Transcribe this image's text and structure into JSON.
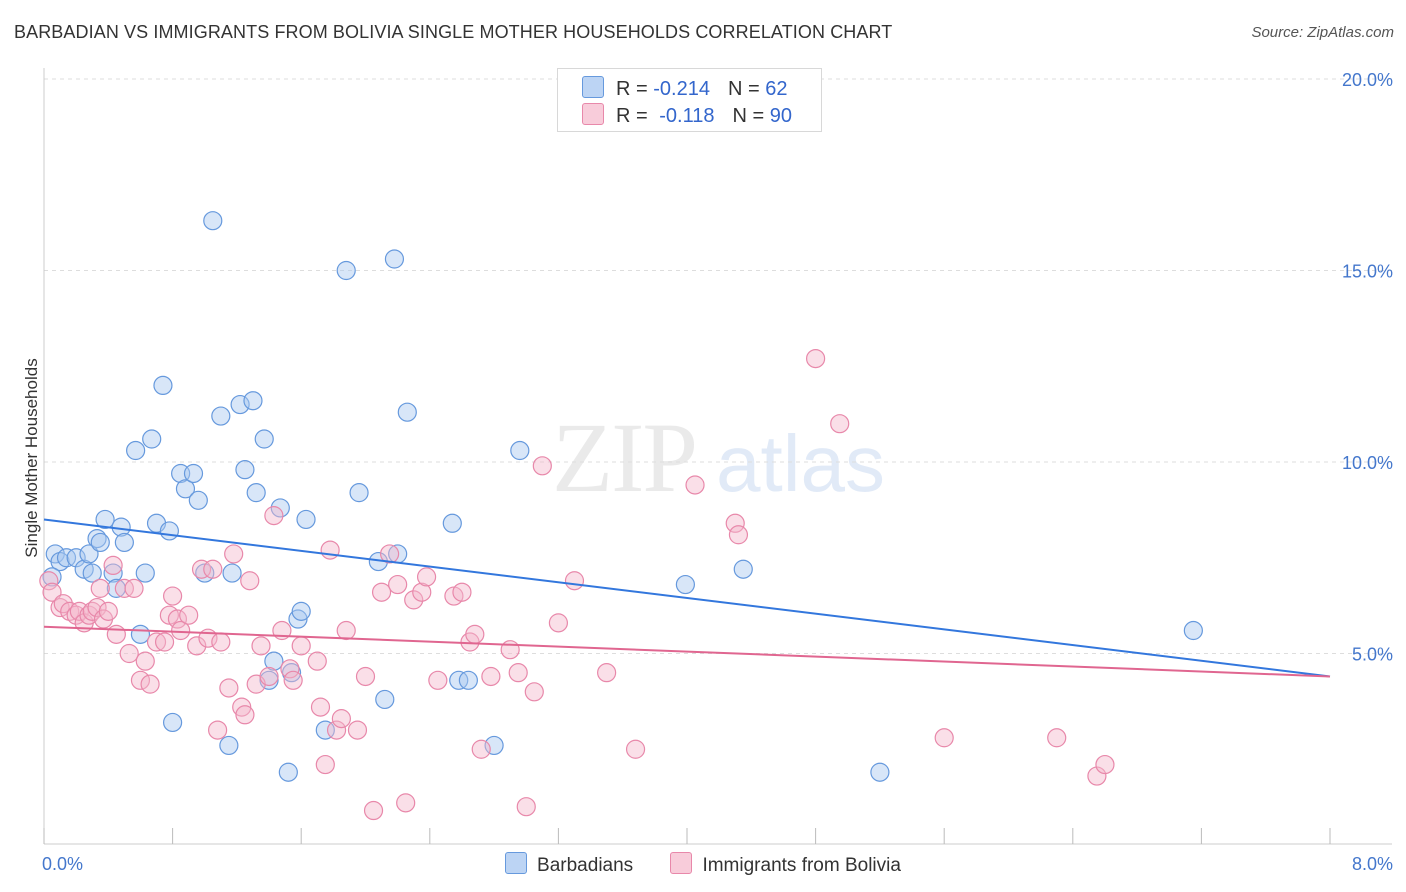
{
  "title": "BARBADIAN VS IMMIGRANTS FROM BOLIVIA SINGLE MOTHER HOUSEHOLDS CORRELATION CHART",
  "source": "Source: ZipAtlas.com",
  "watermark": {
    "zip": "ZIP",
    "atlas": "atlas"
  },
  "legend": {
    "rows": [
      {
        "r_label": "R = ",
        "r_value": "-0.214",
        "n_label": "N = ",
        "n_value": "62",
        "color": "#a8c8f0"
      },
      {
        "r_label": "R = ",
        "r_value": "-0.118",
        "n_label": "N = ",
        "n_value": "90",
        "color": "#f5b8cc"
      }
    ]
  },
  "bottom_legend": {
    "series1": "Barbadians",
    "series2": "Immigrants from Bolivia"
  },
  "chart_data": {
    "type": "scatter",
    "xlabel": "",
    "ylabel": "Single Mother Households",
    "xlim": [
      0,
      8.0
    ],
    "ylim": [
      0,
      20.0
    ],
    "x_ticks": [
      {
        "value": 0,
        "label": "0.0%"
      },
      {
        "value": 8,
        "label": "8.0%"
      }
    ],
    "y_ticks": [
      {
        "value": 5,
        "label": "5.0%"
      },
      {
        "value": 10,
        "label": "10.0%"
      },
      {
        "value": 15,
        "label": "15.0%"
      },
      {
        "value": 20,
        "label": "20.0%"
      }
    ],
    "grid": true,
    "series": [
      {
        "name": "Barbadians",
        "color": "#6699dd",
        "fill": "#a8c8f0",
        "trend": {
          "x": [
            0,
            8.0
          ],
          "y": [
            8.5,
            4.4
          ],
          "color": "#3377dd"
        },
        "points": [
          [
            0.07,
            7.6
          ],
          [
            0.1,
            7.4
          ],
          [
            0.14,
            7.5
          ],
          [
            0.2,
            7.5
          ],
          [
            0.25,
            7.2
          ],
          [
            0.28,
            7.6
          ],
          [
            0.3,
            7.1
          ],
          [
            0.33,
            8.0
          ],
          [
            0.35,
            7.9
          ],
          [
            0.38,
            8.5
          ],
          [
            0.43,
            7.1
          ],
          [
            0.45,
            6.7
          ],
          [
            0.48,
            8.3
          ],
          [
            0.5,
            7.9
          ],
          [
            0.57,
            10.3
          ],
          [
            0.6,
            5.5
          ],
          [
            0.63,
            7.1
          ],
          [
            0.67,
            10.6
          ],
          [
            0.7,
            8.4
          ],
          [
            0.74,
            12.0
          ],
          [
            0.78,
            8.2
          ],
          [
            0.8,
            3.2
          ],
          [
            0.85,
            9.7
          ],
          [
            0.88,
            9.3
          ],
          [
            0.93,
            9.7
          ],
          [
            0.96,
            9.0
          ],
          [
            1.0,
            7.1
          ],
          [
            1.05,
            16.3
          ],
          [
            1.1,
            11.2
          ],
          [
            1.15,
            2.6
          ],
          [
            1.17,
            7.1
          ],
          [
            1.22,
            11.5
          ],
          [
            1.25,
            9.8
          ],
          [
            1.3,
            11.6
          ],
          [
            1.32,
            9.2
          ],
          [
            1.37,
            10.6
          ],
          [
            1.4,
            4.3
          ],
          [
            1.43,
            4.8
          ],
          [
            1.47,
            8.8
          ],
          [
            1.52,
            1.9
          ],
          [
            1.54,
            4.5
          ],
          [
            1.58,
            5.9
          ],
          [
            1.6,
            6.1
          ],
          [
            1.63,
            8.5
          ],
          [
            1.75,
            3.0
          ],
          [
            1.88,
            15.0
          ],
          [
            1.96,
            9.2
          ],
          [
            2.08,
            7.4
          ],
          [
            2.12,
            3.8
          ],
          [
            2.18,
            15.3
          ],
          [
            2.2,
            7.6
          ],
          [
            2.26,
            11.3
          ],
          [
            2.54,
            8.4
          ],
          [
            2.58,
            4.3
          ],
          [
            2.64,
            4.3
          ],
          [
            2.8,
            2.6
          ],
          [
            2.96,
            10.3
          ],
          [
            3.99,
            6.8
          ],
          [
            4.35,
            7.2
          ],
          [
            5.2,
            1.9
          ],
          [
            7.15,
            5.6
          ],
          [
            0.05,
            7.0
          ]
        ]
      },
      {
        "name": "Immigrants from Bolivia",
        "color": "#e888aa",
        "fill": "#f5b8cc",
        "trend": {
          "x": [
            0,
            8.0
          ],
          "y": [
            5.7,
            4.4
          ],
          "color": "#e06690"
        },
        "points": [
          [
            0.03,
            6.9
          ],
          [
            0.05,
            6.6
          ],
          [
            0.1,
            6.2
          ],
          [
            0.12,
            6.3
          ],
          [
            0.16,
            6.1
          ],
          [
            0.2,
            6.0
          ],
          [
            0.22,
            6.1
          ],
          [
            0.25,
            5.8
          ],
          [
            0.28,
            6.0
          ],
          [
            0.3,
            6.1
          ],
          [
            0.33,
            6.2
          ],
          [
            0.35,
            6.7
          ],
          [
            0.37,
            5.9
          ],
          [
            0.4,
            6.1
          ],
          [
            0.43,
            7.3
          ],
          [
            0.45,
            5.5
          ],
          [
            0.5,
            6.7
          ],
          [
            0.53,
            5.0
          ],
          [
            0.56,
            6.7
          ],
          [
            0.6,
            4.3
          ],
          [
            0.63,
            4.8
          ],
          [
            0.66,
            4.2
          ],
          [
            0.7,
            5.3
          ],
          [
            0.75,
            5.3
          ],
          [
            0.78,
            6.0
          ],
          [
            0.8,
            6.5
          ],
          [
            0.83,
            5.9
          ],
          [
            0.85,
            5.6
          ],
          [
            0.9,
            6.0
          ],
          [
            0.95,
            5.2
          ],
          [
            0.98,
            7.2
          ],
          [
            1.02,
            5.4
          ],
          [
            1.05,
            7.2
          ],
          [
            1.08,
            3.0
          ],
          [
            1.1,
            5.3
          ],
          [
            1.15,
            4.1
          ],
          [
            1.18,
            7.6
          ],
          [
            1.23,
            3.6
          ],
          [
            1.25,
            3.4
          ],
          [
            1.28,
            6.9
          ],
          [
            1.32,
            4.2
          ],
          [
            1.35,
            5.2
          ],
          [
            1.4,
            4.4
          ],
          [
            1.43,
            8.6
          ],
          [
            1.48,
            5.6
          ],
          [
            1.53,
            4.6
          ],
          [
            1.55,
            4.3
          ],
          [
            1.6,
            5.2
          ],
          [
            1.7,
            4.8
          ],
          [
            1.72,
            3.6
          ],
          [
            1.75,
            2.1
          ],
          [
            1.78,
            7.7
          ],
          [
            1.82,
            3.0
          ],
          [
            1.85,
            3.3
          ],
          [
            1.88,
            5.6
          ],
          [
            1.95,
            3.0
          ],
          [
            2.0,
            4.4
          ],
          [
            2.05,
            0.9
          ],
          [
            2.1,
            6.6
          ],
          [
            2.15,
            7.6
          ],
          [
            2.2,
            6.8
          ],
          [
            2.25,
            1.1
          ],
          [
            2.3,
            6.4
          ],
          [
            2.35,
            6.6
          ],
          [
            2.38,
            7.0
          ],
          [
            2.45,
            4.3
          ],
          [
            2.55,
            6.5
          ],
          [
            2.6,
            6.6
          ],
          [
            2.65,
            5.3
          ],
          [
            2.68,
            5.5
          ],
          [
            2.72,
            2.5
          ],
          [
            2.78,
            4.4
          ],
          [
            2.9,
            5.1
          ],
          [
            2.95,
            4.5
          ],
          [
            3.0,
            1.0
          ],
          [
            3.05,
            4.0
          ],
          [
            3.1,
            9.9
          ],
          [
            3.2,
            5.8
          ],
          [
            3.3,
            6.9
          ],
          [
            3.5,
            4.5
          ],
          [
            3.68,
            2.5
          ],
          [
            4.05,
            9.4
          ],
          [
            4.3,
            8.4
          ],
          [
            4.32,
            8.1
          ],
          [
            4.8,
            12.7
          ],
          [
            4.95,
            11.0
          ],
          [
            5.6,
            2.8
          ],
          [
            6.3,
            2.8
          ],
          [
            6.55,
            1.8
          ],
          [
            6.6,
            2.1
          ]
        ]
      }
    ]
  }
}
